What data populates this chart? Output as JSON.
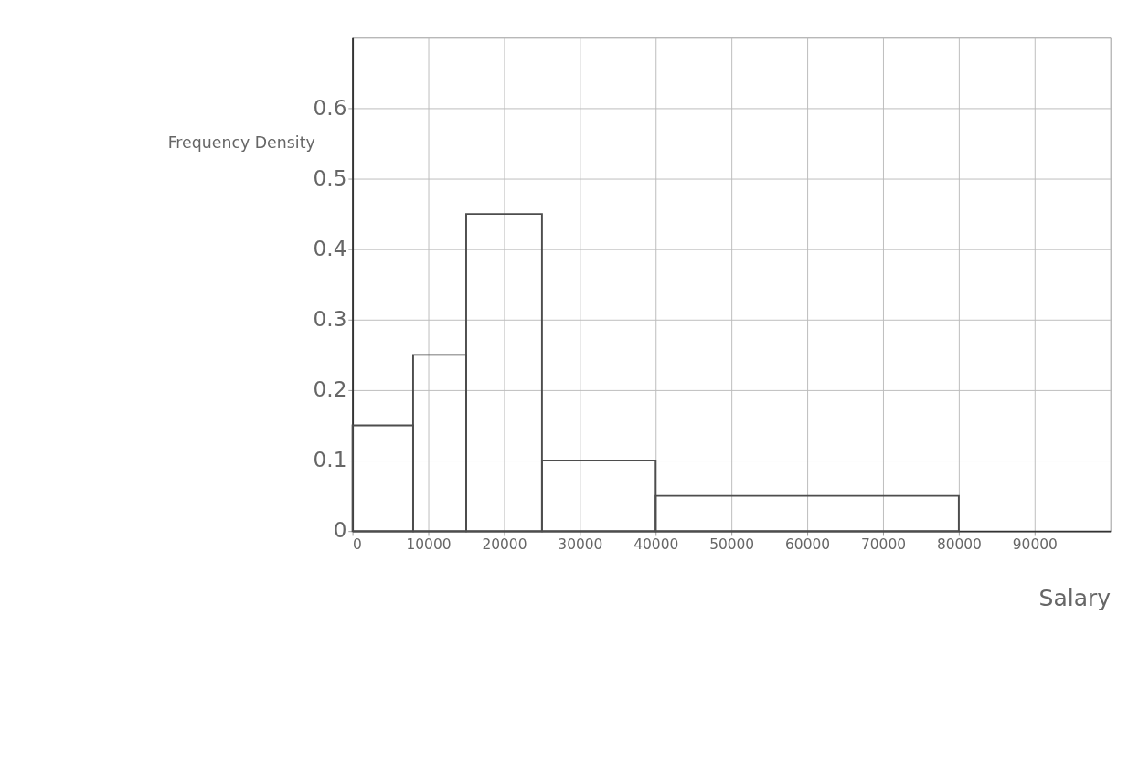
{
  "chart_data": {
    "type": "histogram",
    "xlabel": "Salary",
    "ylabel": "Frequency Density",
    "bins": [
      0,
      8000,
      15000,
      25000,
      40000,
      80000
    ],
    "values": [
      0.15,
      0.25,
      0.45,
      0.1,
      0.05
    ],
    "color": "#4d4d4d",
    "xlim": [
      0,
      100000
    ],
    "xticks": [
      0,
      10000,
      20000,
      30000,
      40000,
      50000,
      60000,
      70000,
      80000,
      90000
    ],
    "ylim": [
      0,
      0.7
    ],
    "yticks": [
      0,
      0.1,
      0.2,
      0.3,
      0.4,
      0.5,
      0.6
    ],
    "grid": true
  }
}
